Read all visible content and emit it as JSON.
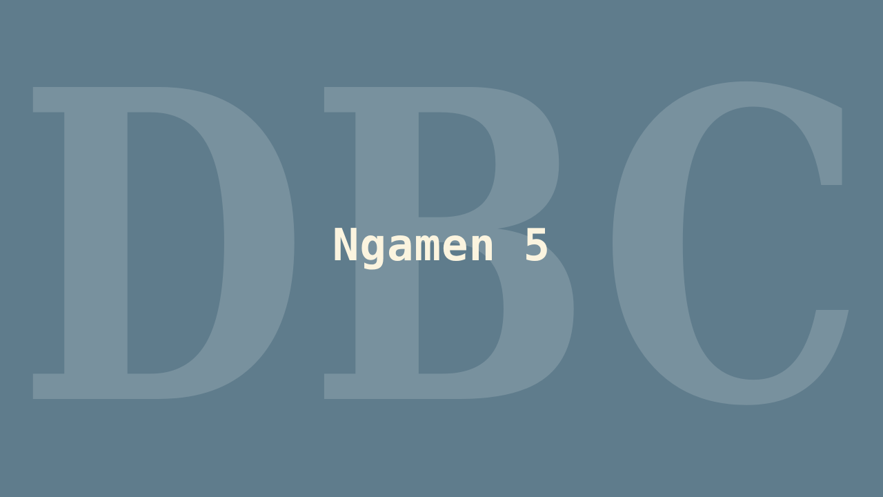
{
  "slide": {
    "background_color": "#5f7c8c",
    "watermark": {
      "text": "DBC",
      "color": "#ffffff"
    },
    "title": {
      "text": "Ngamen 5",
      "color": "#fbf4df"
    }
  }
}
